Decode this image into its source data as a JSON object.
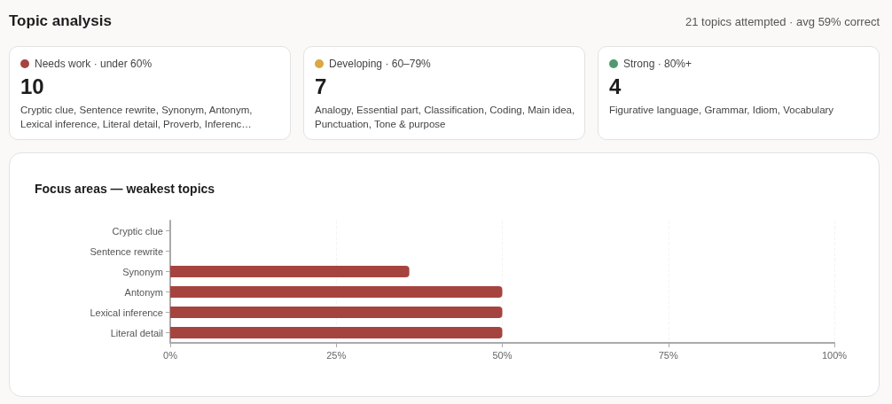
{
  "chart_data": [
    {
      "type": "other",
      "title": "Topic analysis",
      "subtitle": "21 topics attempted · avg 59% correct"
    },
    {
      "type": "other",
      "title": "Needs work · under 60%",
      "color": "#a5443f",
      "annotations": [
        "10",
        "Cryptic clue, Sentence rewrite, Synonym, Antonym, Lexical inference, Literal detail, Proverb, Inferenc…"
      ]
    },
    {
      "type": "other",
      "title": "Developing · 60–79%",
      "color": "#d9a944",
      "annotations": [
        "7",
        "Analogy, Essential part, Classification, Coding, Main idea, Punctuation, Tone & purpose"
      ]
    },
    {
      "type": "other",
      "title": "Strong · 80%+",
      "color": "#4f9a6e",
      "annotations": [
        "4",
        "Figurative language, Grammar, Idiom, Vocabulary"
      ]
    },
    {
      "type": "bar",
      "orientation": "horizontal",
      "title": "Focus areas — weakest topics",
      "categories": [
        "Cryptic clue",
        "Sentence rewrite",
        "Synonym",
        "Antonym",
        "Lexical inference",
        "Literal detail"
      ],
      "values": [
        0,
        0,
        36,
        50,
        50,
        50
      ],
      "color": "#a5443f",
      "xlim": [
        0,
        100
      ],
      "xticks": [
        {
          "value": 0,
          "label": "0%"
        },
        {
          "value": 25,
          "label": "25%"
        },
        {
          "value": 50,
          "label": "50%"
        },
        {
          "value": 75,
          "label": "75%"
        },
        {
          "value": 100,
          "label": "100%"
        }
      ],
      "grid": "x"
    }
  ]
}
